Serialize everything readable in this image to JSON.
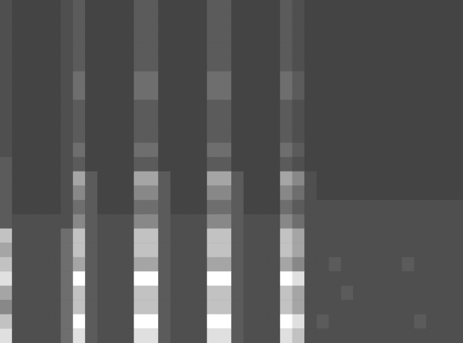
{
  "chart_data": {
    "type": "heatmap",
    "tick_labels": false,
    "crange": [
      0,
      10
    ],
    "cells": [
      [
        3,
        2,
        2,
        2,
        2,
        3,
        4,
        2,
        2,
        2,
        2,
        4,
        4,
        2,
        2,
        2,
        2,
        4,
        4,
        2,
        2,
        2,
        2,
        4,
        3,
        2,
        2,
        2,
        2,
        2,
        2,
        2,
        2,
        2,
        2,
        2,
        2,
        2
      ],
      [
        3,
        2,
        2,
        2,
        2,
        3,
        4,
        2,
        2,
        2,
        2,
        4,
        4,
        2,
        2,
        2,
        2,
        4,
        4,
        2,
        2,
        2,
        2,
        4,
        3,
        2,
        2,
        2,
        2,
        2,
        2,
        2,
        2,
        2,
        2,
        2,
        2,
        2
      ],
      [
        3,
        2,
        2,
        2,
        2,
        3,
        4,
        2,
        2,
        2,
        2,
        4,
        4,
        2,
        2,
        2,
        2,
        4,
        4,
        2,
        2,
        2,
        2,
        4,
        3,
        2,
        2,
        2,
        2,
        2,
        2,
        2,
        2,
        2,
        2,
        2,
        2,
        2
      ],
      [
        3,
        2,
        2,
        2,
        2,
        3,
        4,
        2,
        2,
        2,
        2,
        4,
        4,
        2,
        2,
        2,
        2,
        4,
        4,
        2,
        2,
        2,
        2,
        4,
        3,
        2,
        2,
        2,
        2,
        2,
        2,
        2,
        2,
        2,
        2,
        2,
        2,
        2
      ],
      [
        3,
        2,
        2,
        2,
        2,
        3,
        4,
        2,
        2,
        2,
        2,
        4,
        4,
        2,
        2,
        2,
        2,
        4,
        4,
        2,
        2,
        2,
        2,
        4,
        3,
        2,
        2,
        2,
        2,
        2,
        2,
        2,
        2,
        2,
        2,
        2,
        2,
        2
      ],
      [
        3,
        2,
        2,
        2,
        2,
        3,
        5,
        2,
        2,
        2,
        2,
        5,
        5,
        2,
        2,
        2,
        2,
        5,
        5,
        2,
        2,
        2,
        2,
        5,
        4,
        2,
        2,
        2,
        2,
        2,
        2,
        2,
        2,
        2,
        2,
        2,
        2,
        2
      ],
      [
        3,
        2,
        2,
        2,
        2,
        3,
        5,
        2,
        2,
        2,
        2,
        5,
        5,
        2,
        2,
        2,
        2,
        5,
        5,
        2,
        2,
        2,
        2,
        5,
        4,
        2,
        2,
        2,
        2,
        2,
        2,
        2,
        2,
        2,
        2,
        2,
        2,
        2
      ],
      [
        3,
        2,
        2,
        2,
        2,
        3,
        4,
        2,
        2,
        2,
        2,
        4,
        4,
        2,
        2,
        2,
        2,
        4,
        4,
        2,
        2,
        2,
        2,
        4,
        3,
        2,
        2,
        2,
        2,
        2,
        2,
        2,
        2,
        2,
        2,
        2,
        2,
        2
      ],
      [
        3,
        2,
        2,
        2,
        2,
        3,
        4,
        2,
        2,
        2,
        2,
        4,
        4,
        2,
        2,
        2,
        2,
        4,
        4,
        2,
        2,
        2,
        2,
        4,
        3,
        2,
        2,
        2,
        2,
        2,
        2,
        2,
        2,
        2,
        2,
        2,
        2,
        2
      ],
      [
        3,
        2,
        2,
        2,
        2,
        3,
        4,
        2,
        2,
        2,
        2,
        4,
        4,
        2,
        2,
        2,
        2,
        4,
        4,
        2,
        2,
        2,
        2,
        4,
        3,
        2,
        2,
        2,
        2,
        2,
        2,
        2,
        2,
        2,
        2,
        2,
        2,
        2
      ],
      [
        3,
        2,
        2,
        2,
        2,
        3,
        5,
        2,
        2,
        2,
        2,
        5,
        5,
        2,
        2,
        2,
        2,
        5,
        5,
        2,
        2,
        2,
        2,
        5,
        4,
        2,
        2,
        2,
        2,
        2,
        2,
        2,
        2,
        2,
        2,
        2,
        2,
        2
      ],
      [
        4,
        2,
        2,
        2,
        2,
        3,
        4,
        2,
        2,
        2,
        2,
        4,
        4,
        2,
        2,
        2,
        2,
        4,
        4,
        2,
        2,
        2,
        2,
        4,
        3,
        2,
        2,
        2,
        2,
        2,
        2,
        2,
        2,
        2,
        2,
        2,
        2,
        2
      ],
      [
        4,
        2,
        2,
        2,
        2,
        3,
        7,
        4,
        2,
        2,
        2,
        7,
        7,
        4,
        2,
        2,
        2,
        7,
        7,
        4,
        2,
        2,
        2,
        7,
        6,
        3,
        2,
        2,
        2,
        2,
        2,
        2,
        2,
        2,
        2,
        2,
        2,
        2
      ],
      [
        4,
        2,
        2,
        2,
        2,
        3,
        6,
        4,
        2,
        2,
        2,
        6,
        6,
        4,
        2,
        2,
        2,
        6,
        6,
        4,
        2,
        2,
        2,
        6,
        5,
        3,
        2,
        2,
        2,
        2,
        2,
        2,
        2,
        2,
        2,
        2,
        2,
        2
      ],
      [
        4,
        2,
        2,
        2,
        2,
        3,
        5,
        4,
        2,
        2,
        2,
        5,
        5,
        4,
        2,
        2,
        2,
        5,
        5,
        4,
        2,
        2,
        2,
        5,
        4,
        3,
        3,
        3,
        3,
        3,
        3,
        3,
        3,
        3,
        3,
        3,
        3,
        3
      ],
      [
        4,
        3,
        3,
        3,
        3,
        3,
        6,
        4,
        3,
        3,
        3,
        6,
        6,
        4,
        3,
        3,
        3,
        6,
        6,
        4,
        3,
        3,
        3,
        6,
        5,
        3,
        3,
        3,
        3,
        3,
        3,
        3,
        3,
        3,
        3,
        3,
        3,
        3
      ],
      [
        8,
        3,
        3,
        3,
        3,
        5,
        8,
        4,
        3,
        3,
        3,
        8,
        8,
        4,
        3,
        3,
        3,
        8,
        8,
        4,
        3,
        3,
        3,
        8,
        7,
        3,
        3,
        3,
        3,
        3,
        3,
        3,
        3,
        3,
        3,
        3,
        3,
        3
      ],
      [
        7,
        3,
        3,
        3,
        3,
        5,
        8,
        4,
        3,
        3,
        3,
        8,
        8,
        4,
        3,
        3,
        3,
        8,
        8,
        4,
        3,
        3,
        3,
        8,
        7,
        3,
        3,
        3,
        3,
        3,
        3,
        3,
        3,
        3,
        3,
        3,
        3,
        3
      ],
      [
        8,
        3,
        3,
        3,
        3,
        5,
        7,
        4,
        3,
        3,
        3,
        7,
        7,
        4,
        3,
        3,
        3,
        7,
        7,
        4,
        3,
        3,
        3,
        7,
        6,
        3,
        3,
        4,
        3,
        3,
        3,
        3,
        3,
        4,
        3,
        3,
        3,
        3
      ],
      [
        9,
        3,
        3,
        3,
        3,
        5,
        10,
        4,
        3,
        3,
        3,
        10,
        10,
        4,
        3,
        3,
        3,
        10,
        10,
        4,
        3,
        3,
        3,
        10,
        9,
        3,
        3,
        3,
        3,
        3,
        3,
        3,
        3,
        3,
        3,
        3,
        3,
        3
      ],
      [
        7,
        3,
        3,
        3,
        3,
        5,
        8,
        4,
        3,
        3,
        3,
        8,
        8,
        4,
        3,
        3,
        3,
        8,
        8,
        4,
        3,
        3,
        3,
        8,
        7,
        3,
        3,
        3,
        4,
        3,
        3,
        3,
        3,
        3,
        3,
        3,
        3,
        3
      ],
      [
        6,
        3,
        3,
        3,
        3,
        5,
        8,
        4,
        3,
        3,
        3,
        8,
        8,
        4,
        3,
        3,
        3,
        8,
        8,
        4,
        3,
        3,
        3,
        8,
        7,
        3,
        3,
        3,
        3,
        3,
        3,
        3,
        3,
        3,
        3,
        3,
        3,
        3
      ],
      [
        8,
        3,
        3,
        3,
        3,
        5,
        10,
        4,
        3,
        3,
        3,
        10,
        10,
        4,
        3,
        3,
        3,
        10,
        10,
        4,
        3,
        3,
        3,
        10,
        9,
        3,
        4,
        3,
        3,
        3,
        3,
        3,
        3,
        3,
        4,
        3,
        3,
        3
      ],
      [
        9,
        3,
        3,
        3,
        3,
        5,
        9,
        4,
        3,
        3,
        3,
        9,
        9,
        4,
        3,
        3,
        3,
        9,
        9,
        4,
        3,
        3,
        3,
        9,
        8,
        3,
        3,
        3,
        3,
        3,
        3,
        3,
        3,
        3,
        3,
        3,
        3,
        3
      ]
    ]
  }
}
